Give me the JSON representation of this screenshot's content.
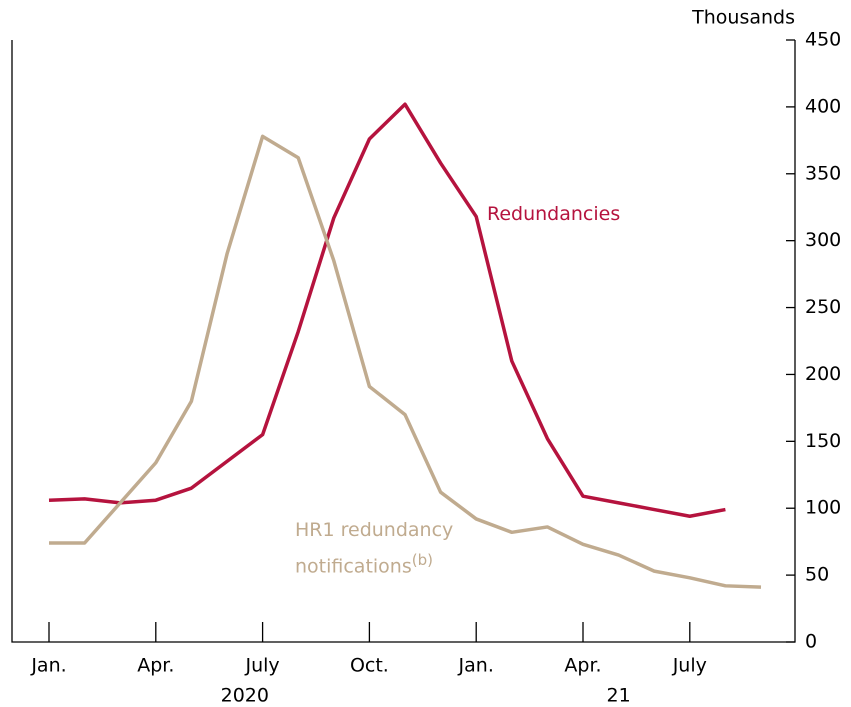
{
  "chart_data": {
    "type": "line",
    "y_axis_label": "Thousands",
    "categories": [
      "Jan.",
      null,
      null,
      "Apr.",
      null,
      null,
      "July",
      null,
      null,
      "Oct.",
      null,
      null,
      "Jan.",
      null,
      null,
      "Apr.",
      null,
      null,
      "July",
      null,
      null
    ],
    "x_groups": [
      {
        "label": "2020",
        "start": 0,
        "end": 11
      },
      {
        "label": "21",
        "start": 12,
        "end": 20
      }
    ],
    "series": [
      {
        "name": "Redundancies",
        "color": "#b5133e",
        "values": [
          106,
          107,
          104,
          106,
          115,
          135,
          155,
          232,
          317,
          376,
          402,
          358,
          318,
          210,
          152,
          109,
          104,
          99,
          94,
          99,
          null
        ]
      },
      {
        "name": "HR1 redundancy notifications",
        "name_note": "(b)",
        "color": "#c0ab8f",
        "values": [
          74,
          74,
          104,
          134,
          180,
          290,
          378,
          362,
          285,
          191,
          170,
          112,
          92,
          82,
          86,
          73,
          65,
          53,
          48,
          42,
          41
        ]
      }
    ],
    "ylim": [
      0,
      450
    ],
    "yticks": [
      0,
      50,
      100,
      150,
      200,
      250,
      300,
      350,
      400,
      450
    ],
    "y_axis_side": "right"
  }
}
